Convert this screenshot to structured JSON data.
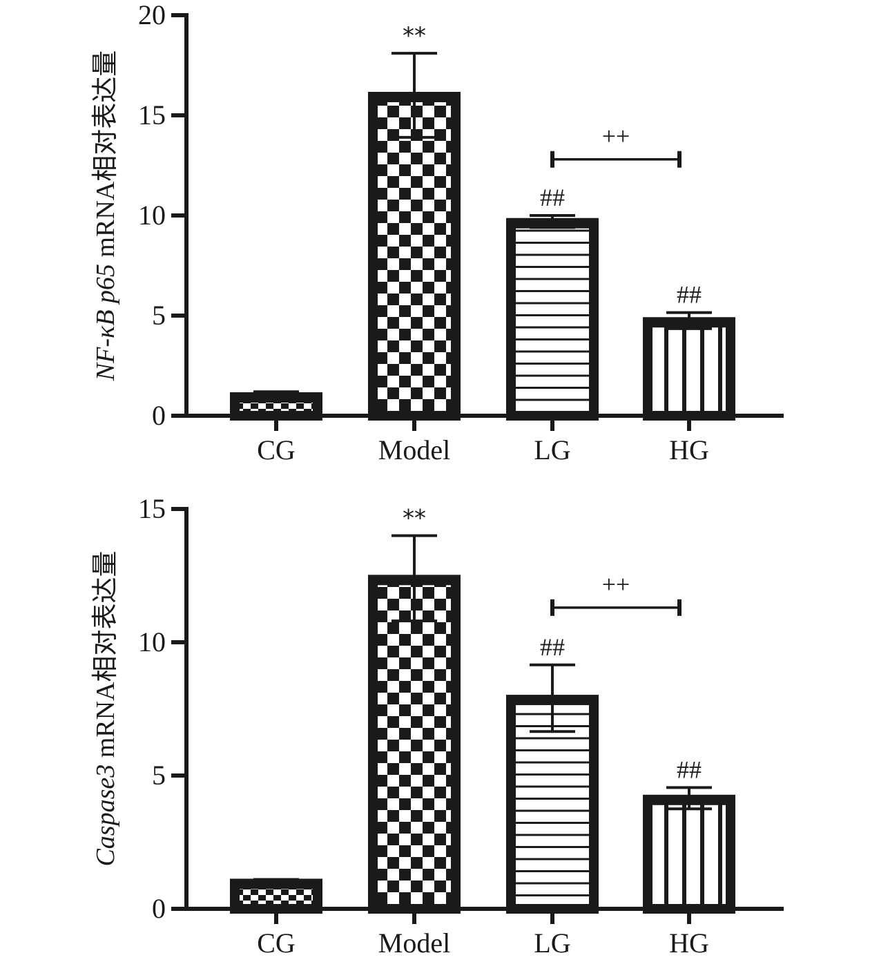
{
  "chart_data": [
    {
      "type": "bar",
      "title": "",
      "ylabel": "NF-κB p65 mRNA相对表达量",
      "ylabel_italic_part": "NF-κB p65",
      "ylabel_rest": " mRNA相对表达量",
      "xlabel": "",
      "ylim": [
        0,
        20
      ],
      "yticks": [
        0,
        5,
        10,
        15,
        20
      ],
      "ytick_labels": [
        "0",
        "5",
        "10",
        "15",
        "20"
      ],
      "categories": [
        "CG",
        "Model",
        "LG",
        "HG"
      ],
      "values": [
        1.0,
        16.0,
        9.7,
        4.75
      ],
      "errors": [
        0.2,
        2.1,
        0.3,
        0.4
      ],
      "patterns": [
        "small-checker",
        "checker",
        "horizontal-lines",
        "vertical-lines"
      ],
      "bar_annotations": [
        "",
        "**",
        "##",
        "##"
      ],
      "bracket": {
        "from": "LG",
        "to": "HG",
        "y": 12.8,
        "label": "++"
      },
      "grid": false,
      "legend": "none"
    },
    {
      "type": "bar",
      "title": "",
      "ylabel": "Caspase3 mRNA相对表达量",
      "ylabel_italic_part": "Caspase3",
      "ylabel_rest": " mRNA相对表达量",
      "xlabel": "",
      "ylim": [
        0,
        15
      ],
      "yticks": [
        0,
        5,
        10,
        15
      ],
      "ytick_labels": [
        "0",
        "5",
        "10",
        "15"
      ],
      "categories": [
        "CG",
        "Model",
        "LG",
        "HG"
      ],
      "values": [
        1.0,
        12.4,
        7.9,
        4.15
      ],
      "errors": [
        0.1,
        1.6,
        1.25,
        0.4
      ],
      "patterns": [
        "small-checker",
        "checker",
        "horizontal-lines",
        "vertical-lines"
      ],
      "bar_annotations": [
        "",
        "**",
        "##",
        "##"
      ],
      "bracket": {
        "from": "LG",
        "to": "HG",
        "y": 11.3,
        "label": "++"
      },
      "grid": false,
      "legend": "none"
    }
  ],
  "colors": {
    "ink": "#1a1a1a",
    "background": "#ffffff"
  }
}
